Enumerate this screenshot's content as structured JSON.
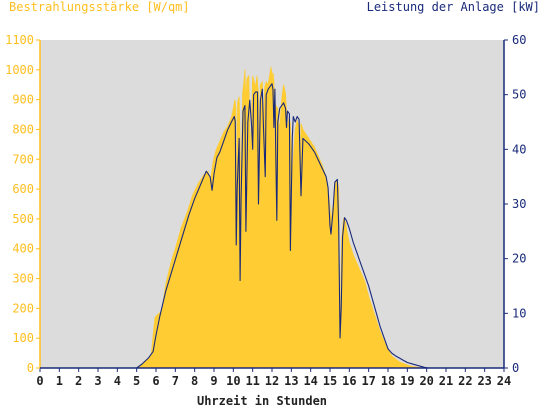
{
  "chart_data": {
    "type": "area",
    "title_left": "Bestrahlungsstärke [W/qm]",
    "title_right": "Leistung der Anlage [kW]",
    "xlabel": "Uhrzeit in Stunden",
    "x_ticks": [
      "0",
      "1",
      "2",
      "3",
      "4",
      "5",
      "6",
      "7",
      "8",
      "9",
      "10",
      "11",
      "12",
      "13",
      "14",
      "15",
      "16",
      "17",
      "18",
      "19",
      "20",
      "21",
      "22",
      "23",
      "24"
    ],
    "y_left_ticks": [
      "0",
      "100",
      "200",
      "300",
      "400",
      "500",
      "600",
      "700",
      "800",
      "900",
      "1000",
      "1100"
    ],
    "y_right_ticks": [
      "0",
      "10",
      "20",
      "30",
      "40",
      "50",
      "60"
    ],
    "xlim": [
      0,
      24
    ],
    "ylim_left": [
      0,
      1100
    ],
    "ylim_right": [
      0,
      60
    ],
    "grid": false,
    "colors": {
      "plot_bg": "#dcdcdc",
      "irradiance": "#ffcc33",
      "power": "#1a2a7a",
      "left_axis_text": "#ffbf1f",
      "right_axis_text": "#1a2a7a"
    },
    "series": [
      {
        "axis": "left",
        "style": "area",
        "points": [
          [
            0,
            0
          ],
          [
            5.0,
            0
          ],
          [
            5.2,
            10
          ],
          [
            5.5,
            25
          ],
          [
            5.75,
            40
          ],
          [
            5.85,
            110
          ],
          [
            5.95,
            170
          ],
          [
            6.1,
            180
          ],
          [
            6.3,
            190
          ],
          [
            6.5,
            280
          ],
          [
            6.8,
            360
          ],
          [
            7.0,
            400
          ],
          [
            7.3,
            470
          ],
          [
            7.6,
            520
          ],
          [
            7.9,
            580
          ],
          [
            8.2,
            620
          ],
          [
            8.5,
            650
          ],
          [
            8.7,
            660
          ],
          [
            8.8,
            620
          ],
          [
            8.95,
            690
          ],
          [
            9.1,
            730
          ],
          [
            9.3,
            760
          ],
          [
            9.5,
            790
          ],
          [
            9.7,
            810
          ],
          [
            9.9,
            840
          ],
          [
            10.0,
            870
          ],
          [
            10.08,
            900
          ],
          [
            10.13,
            870
          ],
          [
            10.18,
            500
          ],
          [
            10.22,
            890
          ],
          [
            10.3,
            910
          ],
          [
            10.4,
            600
          ],
          [
            10.48,
            920
          ],
          [
            10.55,
            960
          ],
          [
            10.6,
            1000
          ],
          [
            10.65,
            880
          ],
          [
            10.7,
            970
          ],
          [
            10.8,
            980
          ],
          [
            10.87,
            700
          ],
          [
            10.95,
            860
          ],
          [
            11.0,
            980
          ],
          [
            11.08,
            960
          ],
          [
            11.15,
            940
          ],
          [
            11.22,
            980
          ],
          [
            11.3,
            920
          ],
          [
            11.35,
            700
          ],
          [
            11.4,
            950
          ],
          [
            11.5,
            960
          ],
          [
            11.55,
            780
          ],
          [
            11.62,
            940
          ],
          [
            11.7,
            960
          ],
          [
            11.8,
            950
          ],
          [
            11.9,
            990
          ],
          [
            11.95,
            1010
          ],
          [
            12.0,
            980
          ],
          [
            12.05,
            990
          ],
          [
            12.1,
            960
          ],
          [
            12.15,
            600
          ],
          [
            12.2,
            880
          ],
          [
            12.3,
            870
          ],
          [
            12.35,
            820
          ],
          [
            12.4,
            800
          ],
          [
            12.5,
            900
          ],
          [
            12.6,
            950
          ],
          [
            12.7,
            920
          ],
          [
            12.75,
            860
          ],
          [
            12.8,
            800
          ],
          [
            12.88,
            840
          ],
          [
            12.95,
            820
          ],
          [
            13.05,
            640
          ],
          [
            13.1,
            700
          ],
          [
            13.2,
            800
          ],
          [
            13.3,
            830
          ],
          [
            13.4,
            810
          ],
          [
            13.45,
            560
          ],
          [
            13.5,
            820
          ],
          [
            13.6,
            800
          ],
          [
            13.7,
            790
          ],
          [
            13.8,
            780
          ],
          [
            13.9,
            770
          ],
          [
            14.0,
            760
          ],
          [
            14.2,
            740
          ],
          [
            14.4,
            710
          ],
          [
            14.6,
            680
          ],
          [
            14.8,
            640
          ],
          [
            14.9,
            600
          ],
          [
            15.0,
            540
          ],
          [
            15.05,
            490
          ],
          [
            15.12,
            530
          ],
          [
            15.2,
            560
          ],
          [
            15.3,
            620
          ],
          [
            15.38,
            630
          ],
          [
            15.45,
            600
          ],
          [
            15.5,
            120
          ],
          [
            15.55,
            200
          ],
          [
            15.6,
            430
          ],
          [
            15.7,
            500
          ],
          [
            15.8,
            490
          ],
          [
            15.9,
            450
          ],
          [
            16.0,
            420
          ],
          [
            16.1,
            400
          ],
          [
            16.2,
            380
          ],
          [
            16.4,
            350
          ],
          [
            16.6,
            320
          ],
          [
            16.8,
            290
          ],
          [
            17.0,
            240
          ],
          [
            17.2,
            200
          ],
          [
            17.4,
            160
          ],
          [
            17.6,
            120
          ],
          [
            17.8,
            90
          ],
          [
            18.0,
            60
          ],
          [
            18.2,
            40
          ],
          [
            18.4,
            30
          ],
          [
            18.6,
            20
          ],
          [
            18.8,
            15
          ],
          [
            19.0,
            10
          ],
          [
            19.2,
            6
          ],
          [
            19.5,
            3
          ],
          [
            19.8,
            0
          ],
          [
            24,
            0
          ]
        ]
      },
      {
        "axis": "right",
        "style": "line",
        "points": [
          [
            0,
            0
          ],
          [
            5.0,
            0
          ],
          [
            5.3,
            0.8
          ],
          [
            5.6,
            1.8
          ],
          [
            5.85,
            3
          ],
          [
            6.0,
            6
          ],
          [
            6.2,
            9.5
          ],
          [
            6.5,
            14
          ],
          [
            6.8,
            17.5
          ],
          [
            7.1,
            21
          ],
          [
            7.4,
            24.5
          ],
          [
            7.7,
            28
          ],
          [
            8.0,
            31
          ],
          [
            8.3,
            33.5
          ],
          [
            8.6,
            36
          ],
          [
            8.8,
            35
          ],
          [
            8.9,
            32.5
          ],
          [
            9.0,
            35.5
          ],
          [
            9.15,
            38.5
          ],
          [
            9.3,
            39.5
          ],
          [
            9.5,
            41.5
          ],
          [
            9.7,
            43.5
          ],
          [
            9.9,
            45
          ],
          [
            10.05,
            46
          ],
          [
            10.1,
            45
          ],
          [
            10.15,
            22.5
          ],
          [
            10.2,
            33
          ],
          [
            10.3,
            42
          ],
          [
            10.35,
            16
          ],
          [
            10.4,
            31
          ],
          [
            10.5,
            47
          ],
          [
            10.6,
            48
          ],
          [
            10.65,
            25
          ],
          [
            10.75,
            45
          ],
          [
            10.85,
            49
          ],
          [
            10.95,
            44
          ],
          [
            11.0,
            40
          ],
          [
            11.05,
            50
          ],
          [
            11.15,
            50.5
          ],
          [
            11.25,
            50.5
          ],
          [
            11.3,
            30
          ],
          [
            11.4,
            49
          ],
          [
            11.5,
            51
          ],
          [
            11.55,
            45
          ],
          [
            11.65,
            35
          ],
          [
            11.7,
            50
          ],
          [
            11.8,
            51
          ],
          [
            11.9,
            51.5
          ],
          [
            12.0,
            52
          ],
          [
            12.05,
            51
          ],
          [
            12.1,
            44
          ],
          [
            12.15,
            51
          ],
          [
            12.2,
            38
          ],
          [
            12.25,
            27
          ],
          [
            12.3,
            45
          ],
          [
            12.4,
            47.5
          ],
          [
            12.5,
            48
          ],
          [
            12.6,
            48.5
          ],
          [
            12.7,
            47.5
          ],
          [
            12.75,
            44
          ],
          [
            12.8,
            47
          ],
          [
            12.9,
            46.5
          ],
          [
            12.95,
            21.5
          ],
          [
            13.05,
            42
          ],
          [
            13.1,
            46
          ],
          [
            13.2,
            45
          ],
          [
            13.3,
            46
          ],
          [
            13.4,
            45.5
          ],
          [
            13.5,
            31.5
          ],
          [
            13.6,
            42
          ],
          [
            13.75,
            41.5
          ],
          [
            13.9,
            41
          ],
          [
            14.0,
            40.5
          ],
          [
            14.2,
            39.5
          ],
          [
            14.4,
            38
          ],
          [
            14.6,
            36.5
          ],
          [
            14.8,
            35
          ],
          [
            14.9,
            33
          ],
          [
            15.0,
            26
          ],
          [
            15.05,
            24.5
          ],
          [
            15.15,
            28.5
          ],
          [
            15.25,
            34
          ],
          [
            15.38,
            34.5
          ],
          [
            15.45,
            26
          ],
          [
            15.52,
            5.5
          ],
          [
            15.58,
            11
          ],
          [
            15.65,
            24
          ],
          [
            15.75,
            27.5
          ],
          [
            15.85,
            27
          ],
          [
            16.0,
            25.5
          ],
          [
            16.2,
            23
          ],
          [
            16.4,
            21
          ],
          [
            16.6,
            19
          ],
          [
            16.8,
            17
          ],
          [
            17.0,
            15
          ],
          [
            17.2,
            12.5
          ],
          [
            17.4,
            10
          ],
          [
            17.6,
            7.5
          ],
          [
            17.8,
            5.5
          ],
          [
            18.0,
            3.5
          ],
          [
            18.2,
            2.7
          ],
          [
            18.4,
            2.2
          ],
          [
            18.6,
            1.8
          ],
          [
            18.8,
            1.4
          ],
          [
            19.0,
            1
          ],
          [
            19.3,
            0.7
          ],
          [
            19.6,
            0.4
          ],
          [
            19.9,
            0.1
          ],
          [
            20.1,
            0
          ],
          [
            24,
            0
          ]
        ]
      }
    ]
  }
}
